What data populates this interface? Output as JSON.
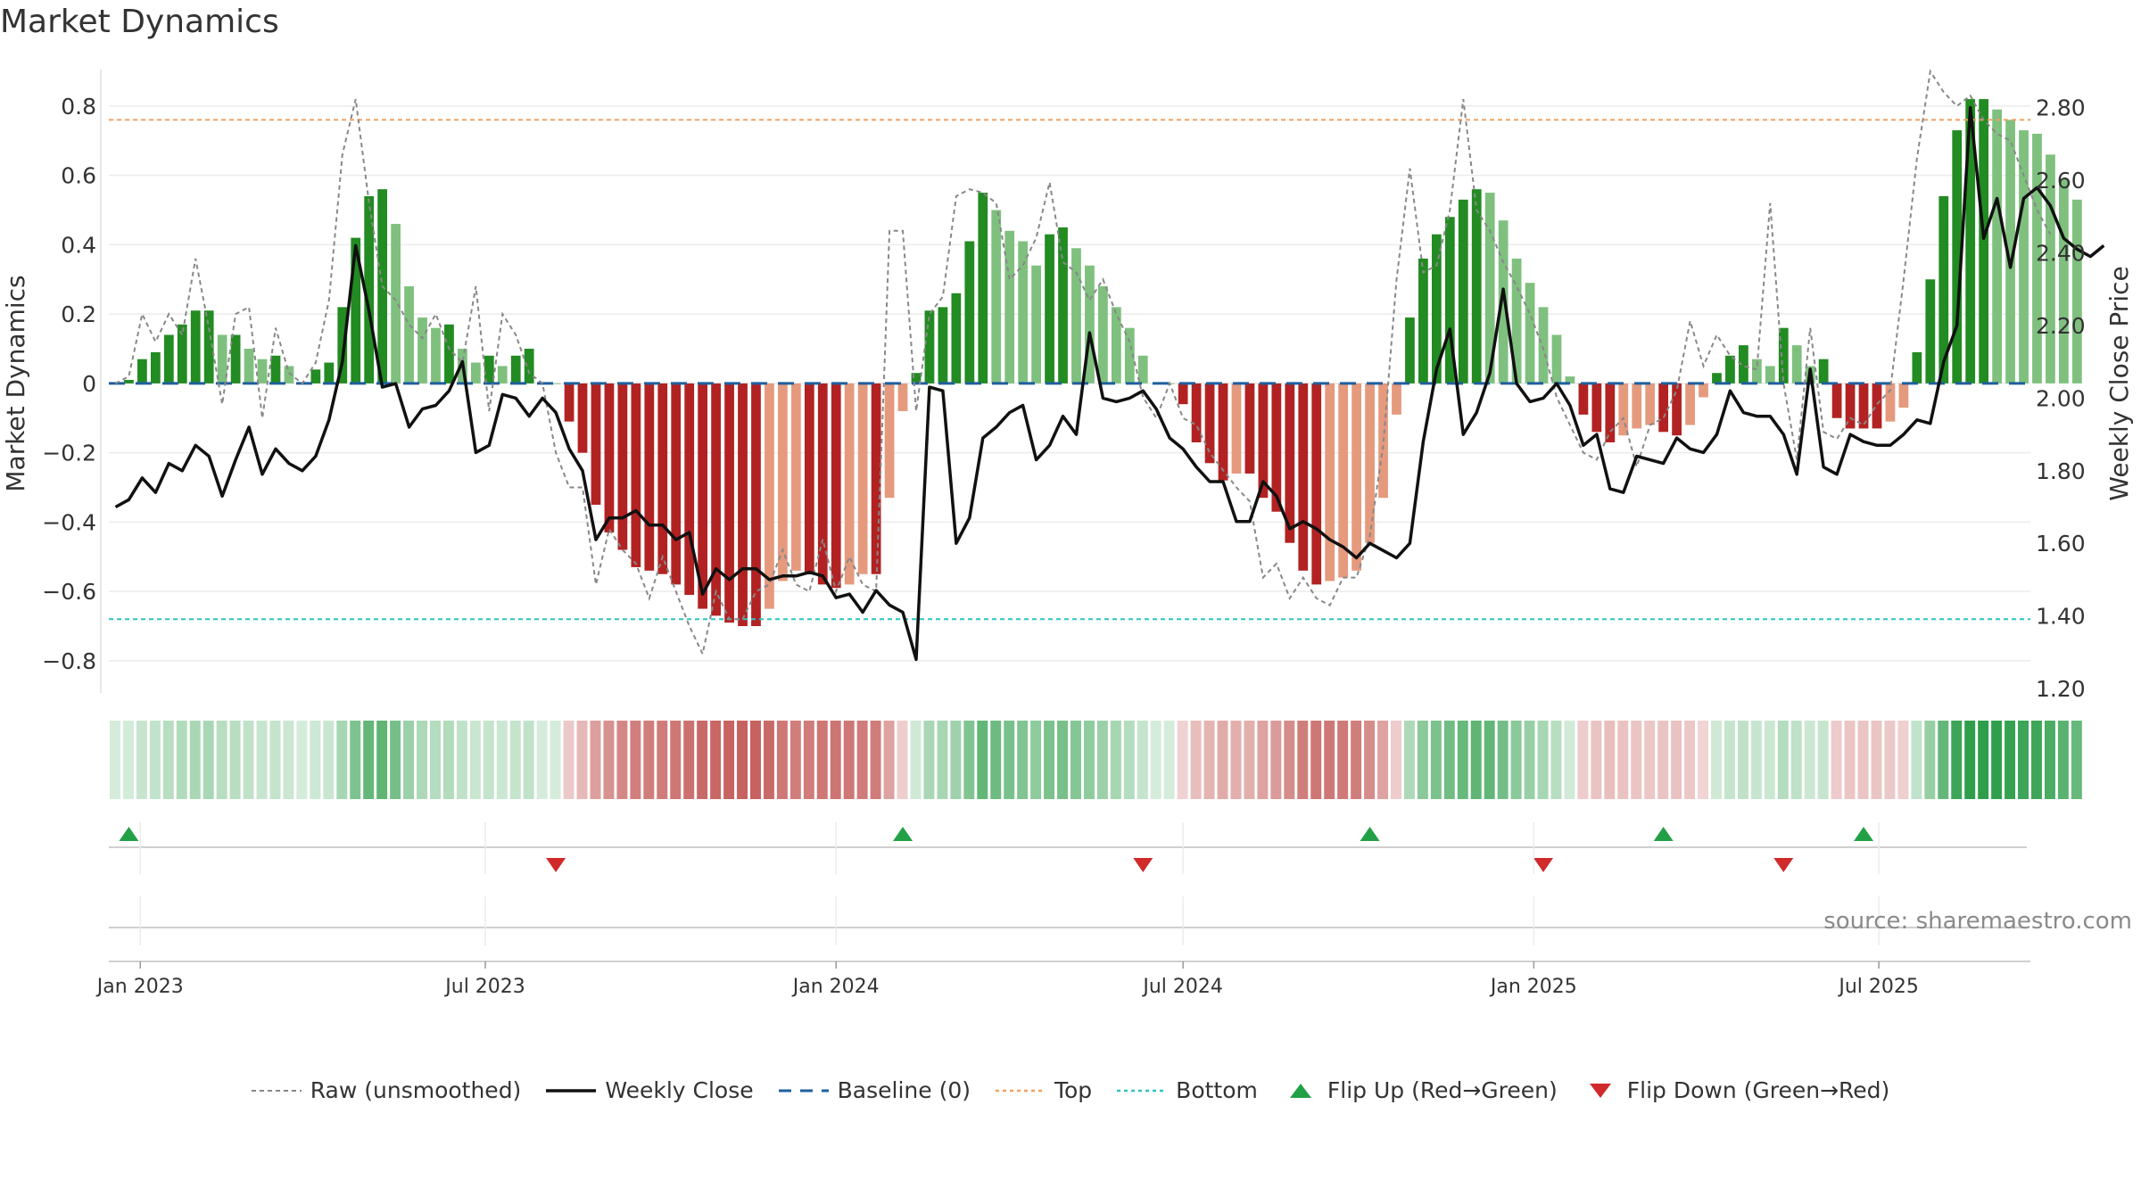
{
  "page": {
    "title": "Market Dynamics",
    "source": "source: sharemaestro.com"
  },
  "chart_data": {
    "type": "bar",
    "title": "Market Dynamics",
    "ylabel": "Market Dynamics",
    "y2label": "Weekly Close Price",
    "ylim": [
      -0.88,
      0.9
    ],
    "y2lim": [
      1.2,
      2.9
    ],
    "yticks": [
      -0.8,
      -0.6,
      -0.4,
      -0.2,
      0,
      0.2,
      0.4,
      0.6,
      0.8
    ],
    "ytick_labels": [
      "−0.8",
      "−0.6",
      "−0.4",
      "−0.2",
      "0",
      "0.2",
      "0.4",
      "0.6",
      "0.8"
    ],
    "y2ticks": [
      1.2,
      1.4,
      1.6,
      1.8,
      2.0,
      2.2,
      2.4,
      2.6,
      2.8
    ],
    "y2tick_labels": [
      "1.20",
      "1.40",
      "1.60",
      "1.80",
      "2.00",
      "2.20",
      "2.40",
      "2.60",
      "2.80"
    ],
    "x_start": "2022-12-19",
    "weeks": 144,
    "xticks": [
      {
        "date": "2023-01-01",
        "label": "Jan 2023"
      },
      {
        "date": "2023-07-01",
        "label": "Jul 2023"
      },
      {
        "date": "2024-01-01",
        "label": "Jan 2024"
      },
      {
        "date": "2024-07-01",
        "label": "Jul 2024"
      },
      {
        "date": "2025-01-01",
        "label": "Jan 2025"
      },
      {
        "date": "2025-07-01",
        "label": "Jul 2025"
      }
    ],
    "top": 0.76,
    "bottom": -0.68,
    "baseline": 0,
    "momentum": [
      0.0,
      0.01,
      0.07,
      0.09,
      0.14,
      0.17,
      0.21,
      0.21,
      0.14,
      0.14,
      0.1,
      0.07,
      0.08,
      0.05,
      0.0,
      0.04,
      0.06,
      0.22,
      0.42,
      0.54,
      0.56,
      0.46,
      0.28,
      0.19,
      0.16,
      0.17,
      0.1,
      0.06,
      0.08,
      0.05,
      0.08,
      0.1,
      0.0,
      0.0,
      -0.11,
      -0.2,
      -0.35,
      -0.43,
      -0.48,
      -0.53,
      -0.54,
      -0.55,
      -0.58,
      -0.61,
      -0.65,
      -0.67,
      -0.69,
      -0.7,
      -0.7,
      -0.65,
      -0.57,
      -0.54,
      -0.55,
      -0.58,
      -0.59,
      -0.58,
      -0.55,
      -0.55,
      -0.33,
      -0.08,
      0.03,
      0.21,
      0.22,
      0.26,
      0.41,
      0.55,
      0.5,
      0.44,
      0.41,
      0.34,
      0.43,
      0.45,
      0.39,
      0.34,
      0.28,
      0.22,
      0.16,
      0.08,
      0.0,
      0.0,
      -0.06,
      -0.17,
      -0.23,
      -0.28,
      -0.26,
      -0.26,
      -0.33,
      -0.37,
      -0.46,
      -0.54,
      -0.58,
      -0.57,
      -0.56,
      -0.54,
      -0.46,
      -0.33,
      -0.09,
      0.19,
      0.36,
      0.43,
      0.48,
      0.53,
      0.56,
      0.55,
      0.47,
      0.36,
      0.29,
      0.22,
      0.14,
      0.02,
      -0.09,
      -0.14,
      -0.17,
      -0.15,
      -0.13,
      -0.12,
      -0.14,
      -0.15,
      -0.12,
      -0.04,
      0.03,
      0.08,
      0.11,
      0.07,
      0.05,
      0.16,
      0.11,
      0.05,
      0.07,
      -0.1,
      -0.13,
      -0.13,
      -0.13,
      -0.11,
      -0.07,
      0.09,
      0.3,
      0.54,
      0.73,
      0.82,
      0.82,
      0.79,
      0.76,
      0.73,
      0.72,
      0.66,
      0.59,
      0.53
    ],
    "raw": [
      0.0,
      0.02,
      0.2,
      0.12,
      0.2,
      0.14,
      0.36,
      0.16,
      -0.06,
      0.2,
      0.22,
      -0.1,
      0.16,
      0.03,
      0.0,
      0.06,
      0.24,
      0.66,
      0.82,
      0.52,
      0.28,
      0.24,
      0.17,
      0.13,
      0.2,
      0.1,
      0.06,
      0.28,
      -0.08,
      0.2,
      0.14,
      0.03,
      0.0,
      -0.2,
      -0.3,
      -0.3,
      -0.58,
      -0.42,
      -0.48,
      -0.52,
      -0.62,
      -0.5,
      -0.6,
      -0.7,
      -0.78,
      -0.6,
      -0.68,
      -0.68,
      -0.6,
      -0.58,
      -0.48,
      -0.58,
      -0.6,
      -0.45,
      -0.6,
      -0.5,
      -0.58,
      -0.6,
      0.44,
      0.44,
      -0.08,
      0.2,
      0.25,
      0.54,
      0.56,
      0.55,
      0.52,
      0.3,
      0.34,
      0.42,
      0.58,
      0.35,
      0.32,
      0.24,
      0.3,
      0.2,
      0.12,
      -0.04,
      -0.1,
      0.0,
      -0.1,
      -0.12,
      -0.2,
      -0.25,
      -0.3,
      -0.34,
      -0.56,
      -0.52,
      -0.62,
      -0.56,
      -0.62,
      -0.64,
      -0.56,
      -0.56,
      -0.44,
      -0.18,
      0.3,
      0.62,
      0.32,
      0.34,
      0.5,
      0.82,
      0.5,
      0.44,
      0.35,
      0.28,
      0.2,
      0.1,
      -0.04,
      -0.12,
      -0.2,
      -0.22,
      -0.14,
      -0.1,
      -0.24,
      -0.12,
      -0.1,
      -0.02,
      0.18,
      0.05,
      0.14,
      0.08,
      0.05,
      0.04,
      0.52,
      0.0,
      -0.22,
      0.16,
      -0.14,
      -0.16,
      -0.1,
      -0.12,
      -0.06,
      -0.02,
      0.3,
      0.65,
      0.9,
      0.84,
      0.8,
      0.83,
      0.76,
      0.72,
      0.7,
      0.6,
      0.5,
      0.43
    ],
    "close": [
      1.7,
      1.72,
      1.78,
      1.74,
      1.82,
      1.8,
      1.87,
      1.84,
      1.73,
      1.83,
      1.92,
      1.79,
      1.86,
      1.82,
      1.8,
      1.84,
      1.94,
      2.1,
      2.42,
      2.24,
      2.03,
      2.04,
      1.92,
      1.97,
      1.98,
      2.02,
      2.1,
      1.85,
      1.87,
      2.01,
      2.0,
      1.95,
      2.0,
      1.96,
      1.86,
      1.8,
      1.61,
      1.67,
      1.67,
      1.69,
      1.65,
      1.65,
      1.61,
      1.63,
      1.46,
      1.53,
      1.5,
      1.53,
      1.53,
      1.5,
      1.51,
      1.51,
      1.52,
      1.51,
      1.45,
      1.46,
      1.41,
      1.47,
      1.43,
      1.41,
      1.28,
      2.03,
      2.02,
      1.6,
      1.67,
      1.89,
      1.92,
      1.96,
      1.98,
      1.83,
      1.87,
      1.95,
      1.9,
      2.18,
      2.0,
      1.99,
      2.0,
      2.02,
      1.97,
      1.89,
      1.86,
      1.81,
      1.77,
      1.77,
      1.66,
      1.66,
      1.77,
      1.73,
      1.64,
      1.66,
      1.64,
      1.61,
      1.59,
      1.56,
      1.6,
      1.58,
      1.56,
      1.6,
      1.88,
      2.08,
      2.19,
      1.9,
      1.96,
      2.07,
      2.3,
      2.04,
      1.99,
      2.0,
      2.04,
      1.98,
      1.87,
      1.9,
      1.75,
      1.74,
      1.84,
      1.83,
      1.82,
      1.89,
      1.86,
      1.85,
      1.9,
      2.02,
      1.96,
      1.95,
      1.95,
      1.9,
      1.79,
      2.08,
      1.81,
      1.79,
      1.9,
      1.88,
      1.87,
      1.87,
      1.9,
      1.94,
      1.93,
      2.1,
      2.2,
      2.8,
      2.44,
      2.55,
      2.36,
      2.55,
      2.58,
      2.53,
      2.44,
      2.41,
      2.39,
      2.42
    ],
    "flip_up_weeks": [
      1,
      59,
      94,
      116,
      131
    ],
    "flip_down_weeks": [
      33,
      77,
      107,
      125
    ],
    "legend": [
      "Raw (unsmoothed)",
      "Weekly Close",
      "Baseline (0)",
      "Top",
      "Bottom",
      "Flip Up (Red→Green)",
      "Flip Down (Green→Red)"
    ],
    "legend_placement": "bottom-center",
    "colors": {
      "green_dark": "#228b22",
      "green_light": "#7fc07f",
      "red_dark": "#b22222",
      "red_light": "#e59a7e",
      "close": "#111111",
      "raw": "#888888",
      "baseline": "#1f5f9e",
      "top": "#f0a060",
      "bottom": "#2ec4c4",
      "flip_up": "#22a046",
      "flip_down": "#d02a2a"
    }
  }
}
